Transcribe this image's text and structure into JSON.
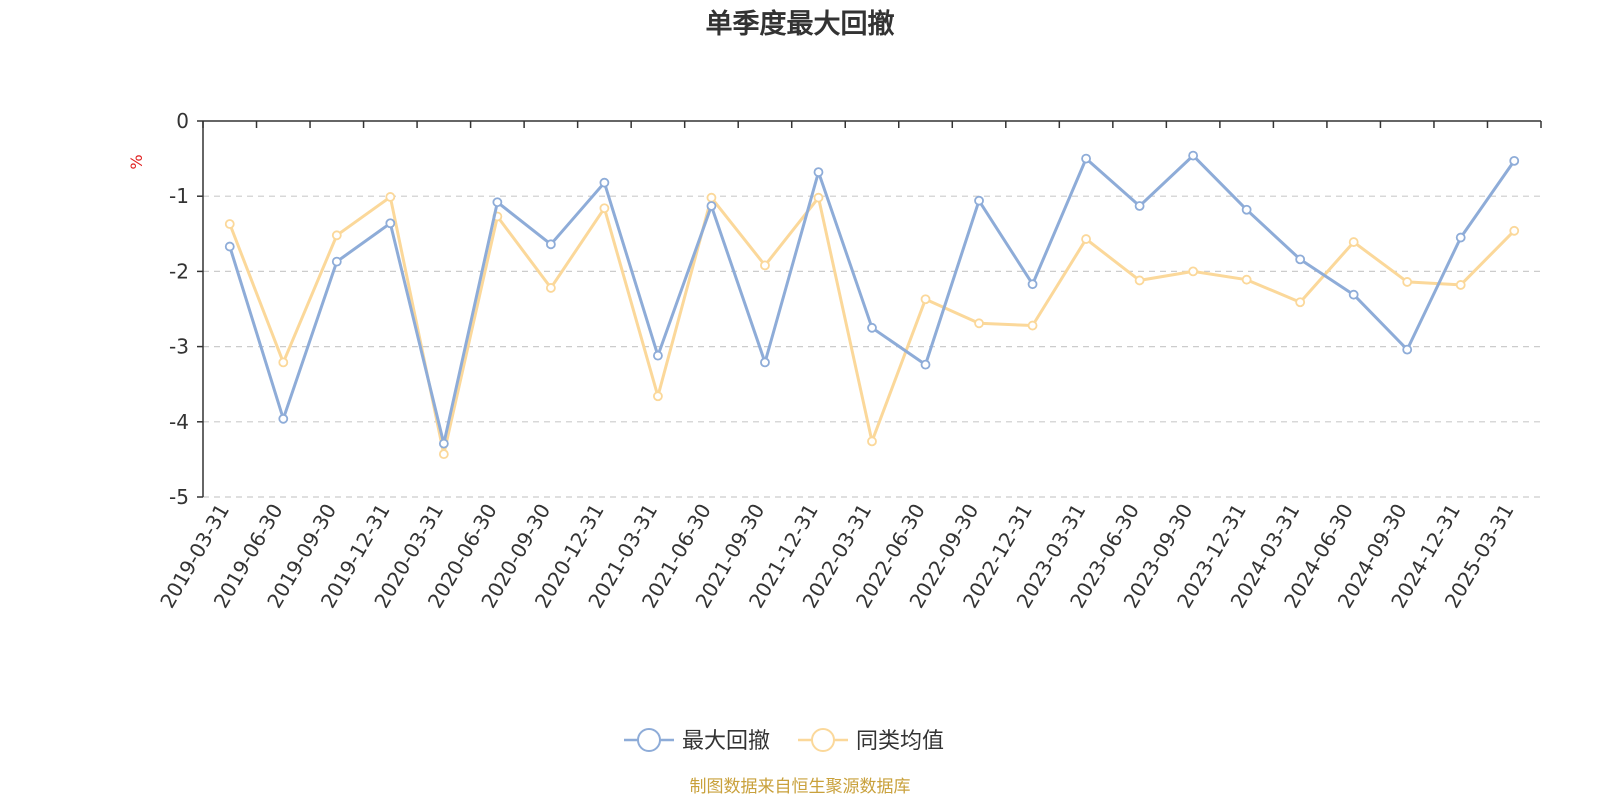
{
  "chart_data": {
    "type": "line",
    "title": "单季度最大回撤",
    "ylabel": "%",
    "ylim": [
      -5,
      0
    ],
    "yticks": [
      "0",
      "-1",
      "-2",
      "-3",
      "-4",
      "-5"
    ],
    "grid": true,
    "legend_position": "bottom-center",
    "categories": [
      "2019-03-31",
      "2019-06-30",
      "2019-09-30",
      "2019-12-31",
      "2020-03-31",
      "2020-06-30",
      "2020-09-30",
      "2020-12-31",
      "2021-03-31",
      "2021-06-30",
      "2021-09-30",
      "2021-12-31",
      "2022-03-31",
      "2022-06-30",
      "2022-09-30",
      "2022-12-31",
      "2023-03-31",
      "2023-06-30",
      "2023-09-30",
      "2023-12-31",
      "2024-03-31",
      "2024-06-30",
      "2024-09-30",
      "2024-12-31",
      "2025-03-31"
    ],
    "series": [
      {
        "name": "最大回撤",
        "color": "#8eacd8",
        "values": [
          -1.67,
          -3.96,
          -1.87,
          -1.36,
          -4.29,
          -1.08,
          -1.64,
          -0.82,
          -3.12,
          -1.13,
          -3.21,
          -0.68,
          -2.75,
          -3.24,
          -1.06,
          -2.17,
          -0.5,
          -1.13,
          -0.46,
          -1.18,
          -1.84,
          -2.31,
          -3.04,
          -1.55,
          -0.53
        ]
      },
      {
        "name": "同类均值",
        "color": "#fbd89a",
        "values": [
          -1.37,
          -3.21,
          -1.52,
          -1.01,
          -4.43,
          -1.27,
          -2.22,
          -1.16,
          -3.66,
          -1.02,
          -1.92,
          -1.02,
          -4.26,
          -2.37,
          -2.69,
          -2.72,
          -1.57,
          -2.12,
          -2.0,
          -2.11,
          -2.41,
          -1.61,
          -2.14,
          -2.18,
          -1.46
        ]
      }
    ],
    "source": "制图数据来自恒生聚源数据库",
    "colors": {
      "axis": "#333333",
      "grid": "#cccccc",
      "unit": "#e02020",
      "source": "#c9a13c"
    }
  }
}
